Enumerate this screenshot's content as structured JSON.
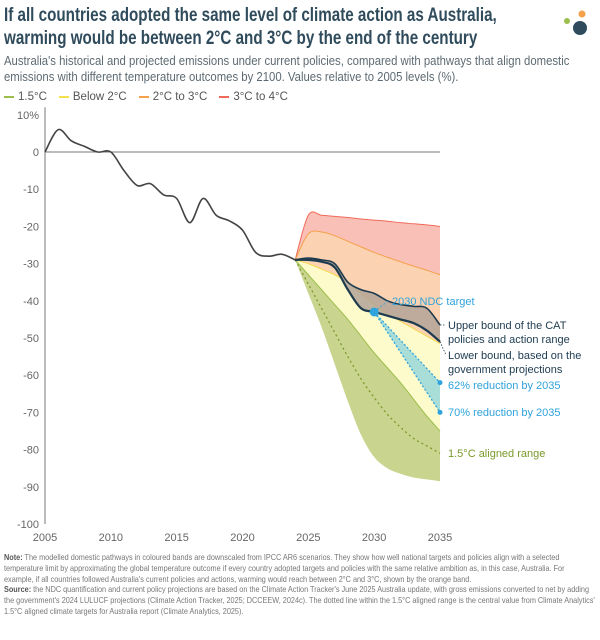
{
  "title": "If all countries adopted the same level of climate action as Australia, warming would be between 2°C and 3°C by the end of the century",
  "subtitle": "Australia's historical and projected emissions under current policies, compared with pathways that align domestic emissions with different temperature outcomes by 2100. Values relative to 2005 levels (%).",
  "legend": [
    {
      "label": "1.5°C",
      "color": "#9bbf4a"
    },
    {
      "label": "Below 2°C",
      "color": "#f2e04c"
    },
    {
      "label": "2°C to 3°C",
      "color": "#f5a04a"
    },
    {
      "label": "3°C to 4°C",
      "color": "#f06a5a"
    }
  ],
  "note_label": "Note:",
  "note": "The modelled domestic pathways in coloured bands are downscaled from IPCC AR6 scenarios. They show how well national targets and policies align with a selected temperature limit by approximating the global temperature outcome if every country adopted targets and policies with the same relative ambition as, in this case, Australia. For example, if all countries followed Australia's current policies and actions, warming would reach between 2°C and 3°C, shown by the orange band.",
  "source_label": "Source:",
  "source": "the NDC quantification and current policy projections are based on the Climate Action Tracker's June 2025 Australia update, with gross emissions converted to net by adding the government's 2024 LULUCF projections (Climate Action Tracker, 2025; DCCEEW, 2024c). The dotted line within the 1.5°C aligned range is the central value from Climate Analytics' 1.5°C aligned climate targets for Australia report (Climate Analytics, 2025).",
  "chart_data": {
    "type": "area",
    "ylim": [
      -100,
      10
    ],
    "xlim": [
      2005,
      2035
    ],
    "y_ticks": [
      "10%",
      "0",
      "-10",
      "-20",
      "-30",
      "-40",
      "-50",
      "-60",
      "-70",
      "-80",
      "-90",
      "-100"
    ],
    "y_tick_values": [
      10,
      0,
      -10,
      -20,
      -30,
      -40,
      -50,
      -60,
      -70,
      -80,
      -90,
      -100
    ],
    "x_ticks": [
      "2005",
      "2010",
      "2015",
      "2020",
      "2025",
      "2030",
      "2035"
    ],
    "x_tick_values": [
      2005,
      2010,
      2015,
      2020,
      2025,
      2030,
      2035
    ],
    "grid": false,
    "historical": {
      "x": [
        2005,
        2006,
        2007,
        2008,
        2009,
        2010,
        2011,
        2012,
        2013,
        2014,
        2015,
        2016,
        2017,
        2018,
        2019,
        2020,
        2021,
        2022,
        2023,
        2024
      ],
      "y": [
        0,
        6,
        3,
        1.5,
        0,
        0,
        -5,
        -9,
        -8.5,
        -11.5,
        -12.5,
        -19,
        -12.5,
        -17,
        -18.5,
        -21,
        -27,
        -28,
        -27.5,
        -29
      ]
    },
    "bands_x": [
      2024,
      2025,
      2026,
      2027,
      2028,
      2029,
      2030,
      2031,
      2032,
      2033,
      2034,
      2035
    ],
    "bands": {
      "red_top": [
        -29,
        -17,
        -17,
        -17.3,
        -17.6,
        -18,
        -18.3,
        -18.6,
        -19,
        -19.3,
        -19.6,
        -20
      ],
      "orange_top": [
        -29,
        -22,
        -21.5,
        -22.5,
        -24,
        -25.5,
        -27,
        -28.3,
        -29.5,
        -30.7,
        -31.8,
        -33
      ],
      "yellow_top": [
        -29,
        -30,
        -31.5,
        -33,
        -35,
        -38,
        -41,
        -43.5,
        -45.5,
        -47.5,
        -49.5,
        -51.5
      ],
      "green_top": [
        -29,
        -33,
        -37,
        -41,
        -45,
        -49.5,
        -54,
        -58,
        -62,
        -66.5,
        -71,
        -75
      ],
      "green_bottom": [
        -29,
        -38,
        -47,
        -57,
        -67,
        -76,
        -82,
        -85,
        -86.5,
        -87.5,
        -88,
        -88.5
      ],
      "central_1p5": [
        -29,
        -35.5,
        -42,
        -48.5,
        -55,
        -61,
        -66,
        -70.5,
        -74,
        -77,
        -79,
        -81
      ]
    },
    "cat_upper": {
      "x": [
        2024,
        2025,
        2026,
        2027,
        2028,
        2029,
        2030,
        2031,
        2032,
        2033,
        2034,
        2035
      ],
      "y": [
        -29,
        -28.5,
        -29,
        -30,
        -35,
        -37,
        -38,
        -40,
        -41,
        -41.5,
        -42,
        -46.5
      ]
    },
    "cat_lower": {
      "x": [
        2024,
        2025,
        2026,
        2027,
        2028,
        2029,
        2030,
        2031,
        2032,
        2033,
        2034,
        2035
      ],
      "y": [
        -29,
        -29,
        -29.5,
        -31,
        -37,
        -42,
        -43,
        -44,
        -45,
        -46,
        -48,
        -51
      ]
    },
    "ndc_2030": {
      "x": 2030,
      "y": -43
    },
    "target_2035_62": {
      "x": 2035,
      "y": -62
    },
    "target_2035_70": {
      "x": 2035,
      "y": -70
    },
    "annotations": {
      "ndc": "2030 NDC target",
      "upper_1": "Upper bound of the CAT",
      "upper_2": "policies and action range",
      "lower_1": "Lower bound, based on the",
      "lower_2": "government projections",
      "r62": "62% reduction by 2035",
      "r70": "70% reduction by 2035",
      "aligned": "1.5°C aligned range"
    },
    "colors": {
      "red_fill": "#f9c0b8",
      "orange_fill": "#fbd3b2",
      "yellow_fill": "#fdfbcc",
      "green_fill": "#c9d48f",
      "cat_fill": "#b3a396",
      "target_fill": "#9ed9d9",
      "line": "#1d3b4f",
      "blue": "#2ea3dc",
      "green_text": "#7a9a2a",
      "historical": "#444444"
    }
  }
}
